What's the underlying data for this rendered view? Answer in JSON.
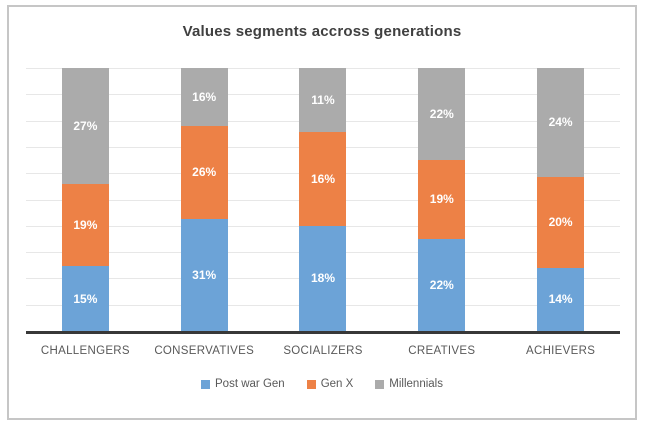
{
  "chart_data": {
    "type": "bar",
    "subtype": "stacked-100-percent",
    "title": "Values segments accross generations",
    "categories": [
      "CHALLENGERS",
      "CONSERVATIVES",
      "SOCIALIZERS",
      "CREATIVES",
      "ACHIEVERS"
    ],
    "series": [
      {
        "name": "Post war Gen",
        "color": "#6ca3d7",
        "values": [
          15,
          31,
          18,
          22,
          14
        ]
      },
      {
        "name": "Gen X",
        "color": "#ed8146",
        "values": [
          19,
          26,
          16,
          19,
          20
        ]
      },
      {
        "name": "Millennials",
        "color": "#ababab",
        "values": [
          27,
          16,
          11,
          22,
          24
        ]
      }
    ],
    "data_label_format": "percent",
    "data_labels": {
      "CHALLENGERS": {
        "Post war Gen": "15%",
        "Gen X": "19%",
        "Millennials": "27%"
      },
      "CONSERVATIVES": {
        "Post war Gen": "31%",
        "Gen X": "26%",
        "Millennials": "16%"
      },
      "SOCIALIZERS": {
        "Post war Gen": "18%",
        "Gen X": "16%",
        "Millennials": "11%"
      },
      "CREATIVES": {
        "Post war Gen": "22%",
        "Gen X": "19%",
        "Millennials": "22%"
      },
      "ACHIEVERS": {
        "Post war Gen": "14%",
        "Gen X": "20%",
        "Millennials": "24%"
      }
    },
    "xlabel": "",
    "ylabel": "",
    "legend_position": "bottom",
    "legend_entries": [
      "Post war Gen",
      "Gen X",
      "Millennials"
    ],
    "grid": "horizontal, 10 divisions, light gray",
    "axis_line_color": "#383838",
    "gridline_color": "#e7e7e7",
    "title_color": "#404040",
    "label_text_color": "#595959",
    "frame_border_color": "#c6c6c6",
    "normalized_per_column": true
  }
}
